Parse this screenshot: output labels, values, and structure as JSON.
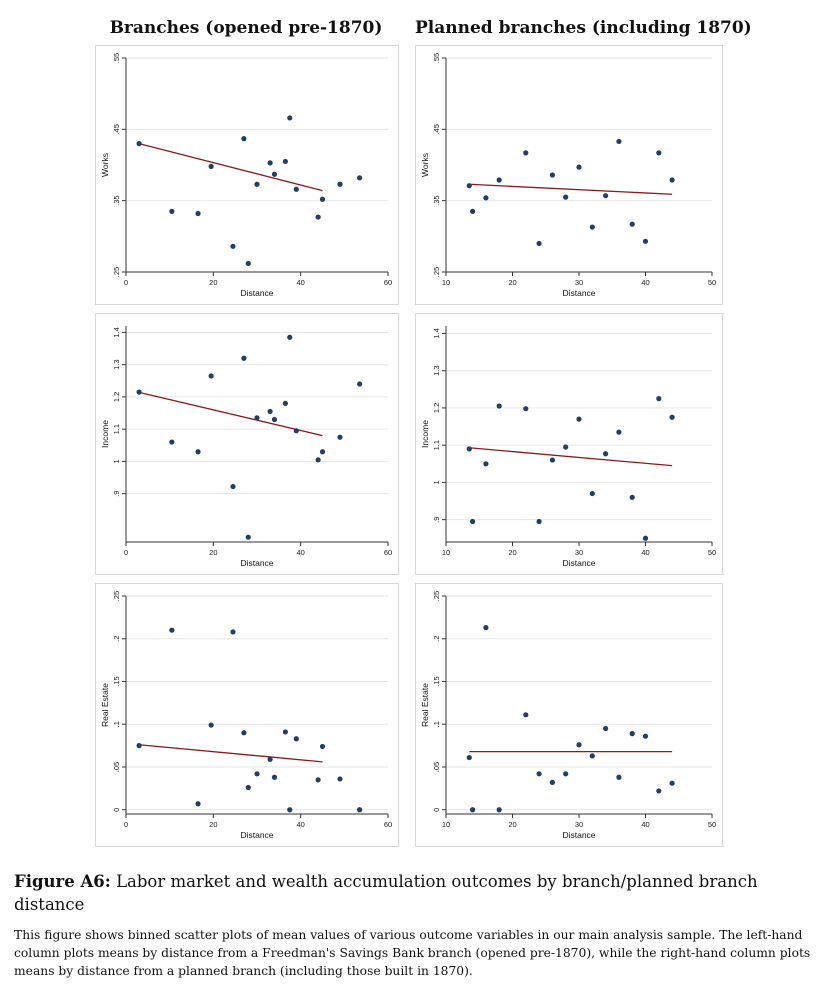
{
  "column_titles": [
    "Branches (opened pre-1870)",
    "Planned branches (including 1870)"
  ],
  "caption": {
    "label": "Figure A6:",
    "title": "Labor market and wealth accumulation outcomes by branch/planned branch distance",
    "body": "This figure shows binned scatter plots of mean values of various outcome variables in our main analysis sample. The left-hand column plots means by distance from a Freedman's Savings Bank branch (opened pre-1870), while the right-hand column plots means by distance from a planned branch (including those built in 1870)."
  },
  "colors": {
    "point": "#1f3f66",
    "fit": "#8b1a1a",
    "grid": "#e6e6e6",
    "axis": "#333333"
  },
  "chart_data": [
    {
      "id": "works-pre1870",
      "type": "scatter",
      "column": "left",
      "row": 0,
      "xlabel": "Distance",
      "ylabel": "Works",
      "xlim": [
        0,
        60
      ],
      "ylim": [
        0.25,
        0.55
      ],
      "xticks": [
        0,
        20,
        40,
        60
      ],
      "xtick_labels": [
        "0",
        "20",
        "40",
        "60"
      ],
      "yticks": [
        0.25,
        0.35,
        0.45,
        0.55
      ],
      "ytick_labels": [
        ".25",
        ".35",
        ".45",
        ".55"
      ],
      "points": [
        [
          3,
          0.43
        ],
        [
          10.5,
          0.335
        ],
        [
          16.5,
          0.332
        ],
        [
          19.5,
          0.398
        ],
        [
          24.5,
          0.286
        ],
        [
          27,
          0.437
        ],
        [
          28,
          0.262
        ],
        [
          30,
          0.373
        ],
        [
          33,
          0.403
        ],
        [
          34,
          0.387
        ],
        [
          36.5,
          0.405
        ],
        [
          37.5,
          0.466
        ],
        [
          39,
          0.366
        ],
        [
          44,
          0.327
        ],
        [
          45,
          0.352
        ],
        [
          49,
          0.373
        ],
        [
          53.5,
          0.382
        ]
      ],
      "fit": [
        [
          3,
          0.43
        ],
        [
          45,
          0.364
        ]
      ]
    },
    {
      "id": "works-planned",
      "type": "scatter",
      "column": "right",
      "row": 0,
      "xlabel": "Distance",
      "ylabel": "Works",
      "xlim": [
        10,
        50
      ],
      "ylim": [
        0.25,
        0.55
      ],
      "xticks": [
        10,
        20,
        30,
        40,
        50
      ],
      "xtick_labels": [
        "10",
        "20",
        "30",
        "40",
        "50"
      ],
      "yticks": [
        0.25,
        0.35,
        0.45,
        0.55
      ],
      "ytick_labels": [
        ".25",
        ".35",
        ".45",
        ".55"
      ],
      "points": [
        [
          13.5,
          0.371
        ],
        [
          14,
          0.335
        ],
        [
          16,
          0.354
        ],
        [
          18,
          0.379
        ],
        [
          22,
          0.417
        ],
        [
          24,
          0.29
        ],
        [
          26,
          0.386
        ],
        [
          28,
          0.355
        ],
        [
          30,
          0.397
        ],
        [
          32,
          0.313
        ],
        [
          34,
          0.357
        ],
        [
          36,
          0.433
        ],
        [
          38,
          0.317
        ],
        [
          40,
          0.293
        ],
        [
          42,
          0.417
        ],
        [
          44,
          0.379
        ]
      ],
      "fit": [
        [
          13.5,
          0.373
        ],
        [
          44,
          0.359
        ]
      ]
    },
    {
      "id": "income-pre1870",
      "type": "scatter",
      "column": "left",
      "row": 1,
      "xlabel": "Distance",
      "ylabel": "Income",
      "xlim": [
        0,
        60
      ],
      "ylim": [
        0.75,
        1.42
      ],
      "xticks": [
        0,
        20,
        40,
        60
      ],
      "xtick_labels": [
        "0",
        "20",
        "40",
        "60"
      ],
      "yticks": [
        0.9,
        1.0,
        1.1,
        1.2,
        1.3,
        1.4
      ],
      "ytick_labels": [
        ".9",
        "1",
        "1.1",
        "1.2",
        "1.3",
        "1.4"
      ],
      "points": [
        [
          3,
          1.215
        ],
        [
          10.5,
          1.06
        ],
        [
          16.5,
          1.03
        ],
        [
          19.5,
          1.265
        ],
        [
          24.5,
          0.922
        ],
        [
          27,
          1.32
        ],
        [
          28,
          0.765
        ],
        [
          30,
          1.135
        ],
        [
          33,
          1.155
        ],
        [
          34,
          1.13
        ],
        [
          36.5,
          1.18
        ],
        [
          37.5,
          1.385
        ],
        [
          39,
          1.095
        ],
        [
          44,
          1.005
        ],
        [
          45,
          1.03
        ],
        [
          49,
          1.075
        ],
        [
          53.5,
          1.24
        ]
      ],
      "fit": [
        [
          3,
          1.214
        ],
        [
          45,
          1.08
        ]
      ]
    },
    {
      "id": "income-planned",
      "type": "scatter",
      "column": "right",
      "row": 1,
      "xlabel": "Distance",
      "ylabel": "Income",
      "xlim": [
        10,
        50
      ],
      "ylim": [
        0.84,
        1.42
      ],
      "xticks": [
        10,
        20,
        30,
        40,
        50
      ],
      "xtick_labels": [
        "10",
        "20",
        "30",
        "40",
        "50"
      ],
      "yticks": [
        0.9,
        1.0,
        1.1,
        1.2,
        1.3,
        1.4
      ],
      "ytick_labels": [
        ".9",
        "1",
        "1.1",
        "1.2",
        "1.3",
        "1.4"
      ],
      "points": [
        [
          13.5,
          1.09
        ],
        [
          14,
          0.895
        ],
        [
          16,
          1.05
        ],
        [
          18,
          1.205
        ],
        [
          22,
          1.198
        ],
        [
          24,
          0.895
        ],
        [
          26,
          1.06
        ],
        [
          28,
          1.095
        ],
        [
          30,
          1.17
        ],
        [
          32,
          0.97
        ],
        [
          34,
          1.077
        ],
        [
          36,
          1.135
        ],
        [
          38,
          0.96
        ],
        [
          40,
          0.85
        ],
        [
          42,
          1.225
        ],
        [
          44,
          1.175
        ]
      ],
      "fit": [
        [
          13.5,
          1.093
        ],
        [
          44,
          1.045
        ]
      ]
    },
    {
      "id": "realestate-pre1870",
      "type": "scatter",
      "column": "left",
      "row": 2,
      "xlabel": "Distance",
      "ylabel": "Real Estate",
      "xlim": [
        0,
        60
      ],
      "ylim": [
        -0.005,
        0.25
      ],
      "xticks": [
        0,
        20,
        40,
        60
      ],
      "xtick_labels": [
        "0",
        "20",
        "40",
        "60"
      ],
      "yticks": [
        0,
        0.05,
        0.1,
        0.15,
        0.2,
        0.25
      ],
      "ytick_labels": [
        "0",
        ".05",
        ".1",
        ".15",
        ".2",
        ".25"
      ],
      "points": [
        [
          3,
          0.075
        ],
        [
          10.5,
          0.21
        ],
        [
          16.5,
          0.007
        ],
        [
          19.5,
          0.099
        ],
        [
          24.5,
          0.208
        ],
        [
          27,
          0.09
        ],
        [
          28,
          0.026
        ],
        [
          30,
          0.042
        ],
        [
          33,
          0.059
        ],
        [
          34,
          0.038
        ],
        [
          36.5,
          0.091
        ],
        [
          37.5,
          0.0
        ],
        [
          39,
          0.083
        ],
        [
          44,
          0.035
        ],
        [
          45,
          0.074
        ],
        [
          49,
          0.036
        ],
        [
          53.5,
          0.0
        ]
      ],
      "fit": [
        [
          3,
          0.076
        ],
        [
          45,
          0.056
        ]
      ]
    },
    {
      "id": "realestate-planned",
      "type": "scatter",
      "column": "right",
      "row": 2,
      "xlabel": "Distance",
      "ylabel": "Real Estate",
      "xlim": [
        10,
        50
      ],
      "ylim": [
        -0.005,
        0.25
      ],
      "xticks": [
        10,
        20,
        30,
        40,
        50
      ],
      "xtick_labels": [
        "10",
        "20",
        "30",
        "40",
        "50"
      ],
      "yticks": [
        0,
        0.05,
        0.1,
        0.15,
        0.2,
        0.25
      ],
      "ytick_labels": [
        "0",
        ".05",
        ".1",
        ".15",
        ".2",
        ".25"
      ],
      "points": [
        [
          13.5,
          0.061
        ],
        [
          14,
          0.0
        ],
        [
          16,
          0.213
        ],
        [
          18,
          0.0
        ],
        [
          22,
          0.111
        ],
        [
          24,
          0.042
        ],
        [
          26,
          0.032
        ],
        [
          28,
          0.042
        ],
        [
          30,
          0.076
        ],
        [
          32,
          0.063
        ],
        [
          34,
          0.095
        ],
        [
          36,
          0.038
        ],
        [
          38,
          0.089
        ],
        [
          40,
          0.086
        ],
        [
          42,
          0.022
        ],
        [
          44,
          0.031
        ]
      ],
      "fit": [
        [
          13.5,
          0.068
        ],
        [
          44,
          0.068
        ]
      ]
    }
  ]
}
